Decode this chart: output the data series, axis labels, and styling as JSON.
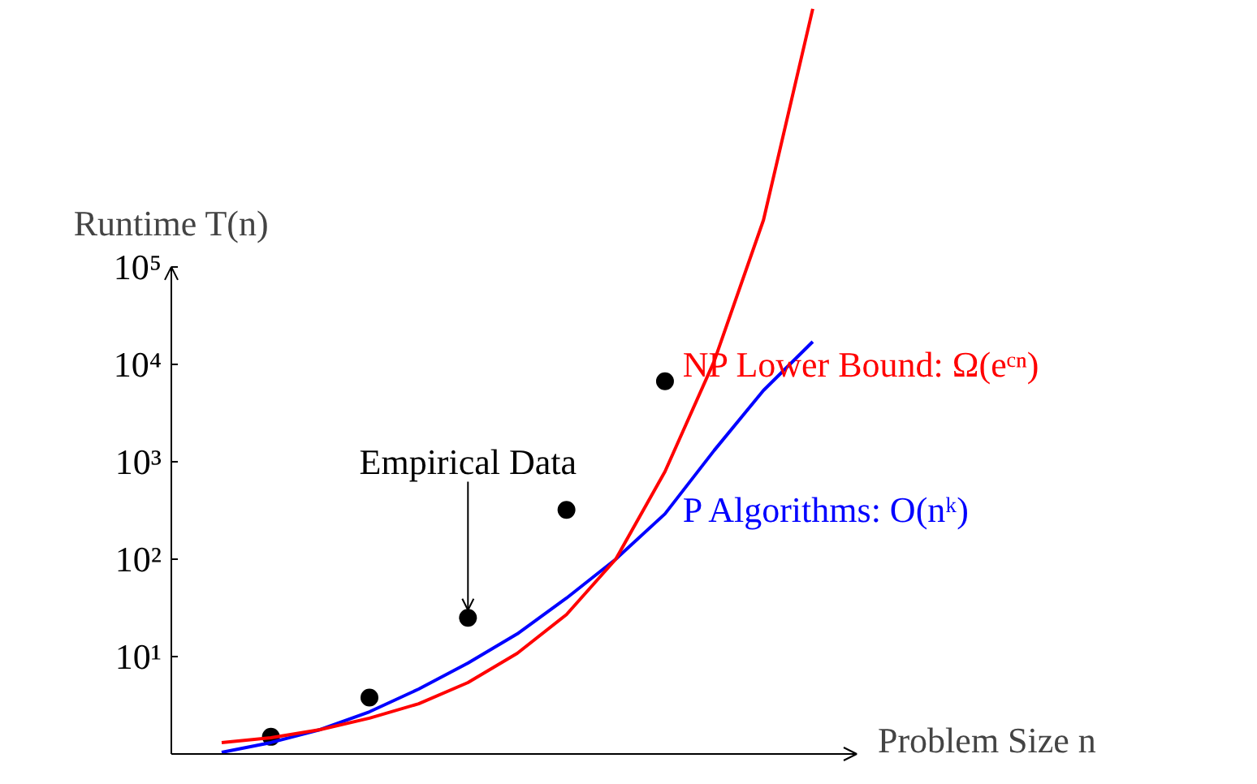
{
  "chart_data": {
    "type": "line",
    "xlabel": "Problem Size n",
    "ylabel": "Runtime T(n)",
    "log": "y",
    "tick_labels": "y",
    "grid": false,
    "legend": false,
    "categories": [
      null,
      null,
      null,
      null,
      null,
      null,
      null,
      null,
      null,
      null,
      null,
      null,
      null
    ],
    "ylim": [
      1,
      54000000
    ],
    "yticks": [
      {
        "value": 10,
        "label": "10¹"
      },
      {
        "value": 100,
        "label": "10²"
      },
      {
        "value": 1000,
        "label": "10³"
      },
      {
        "value": 10000,
        "label": "10⁴"
      },
      {
        "value": 100000,
        "label": "10⁵"
      }
    ],
    "series": [
      {
        "type": "scatter",
        "marker": "circle",
        "color": "#000000",
        "values": [
          null,
          1.5,
          null,
          3.8,
          null,
          25,
          null,
          320,
          null,
          6700,
          null,
          null,
          null
        ]
      },
      {
        "name": "P Algorithms: O(nᵏ)",
        "color": "#0000ff",
        "values": [
          1.04,
          1.31,
          1.78,
          2.71,
          4.64,
          8.58,
          17.1,
          39.8,
          100,
          292,
          1310,
          5410,
          17100
        ]
      },
      {
        "name": "NP Lower Bound: Ω(eᶜⁿ)",
        "color": "#ff0000",
        "values": [
          1.31,
          1.47,
          1.78,
          2.33,
          3.28,
          5.41,
          10.8,
          27,
          100,
          794,
          10800,
          304000,
          44700000
        ]
      }
    ],
    "annotations": [
      {
        "text": "Empirical Data",
        "y": 25
      }
    ]
  }
}
